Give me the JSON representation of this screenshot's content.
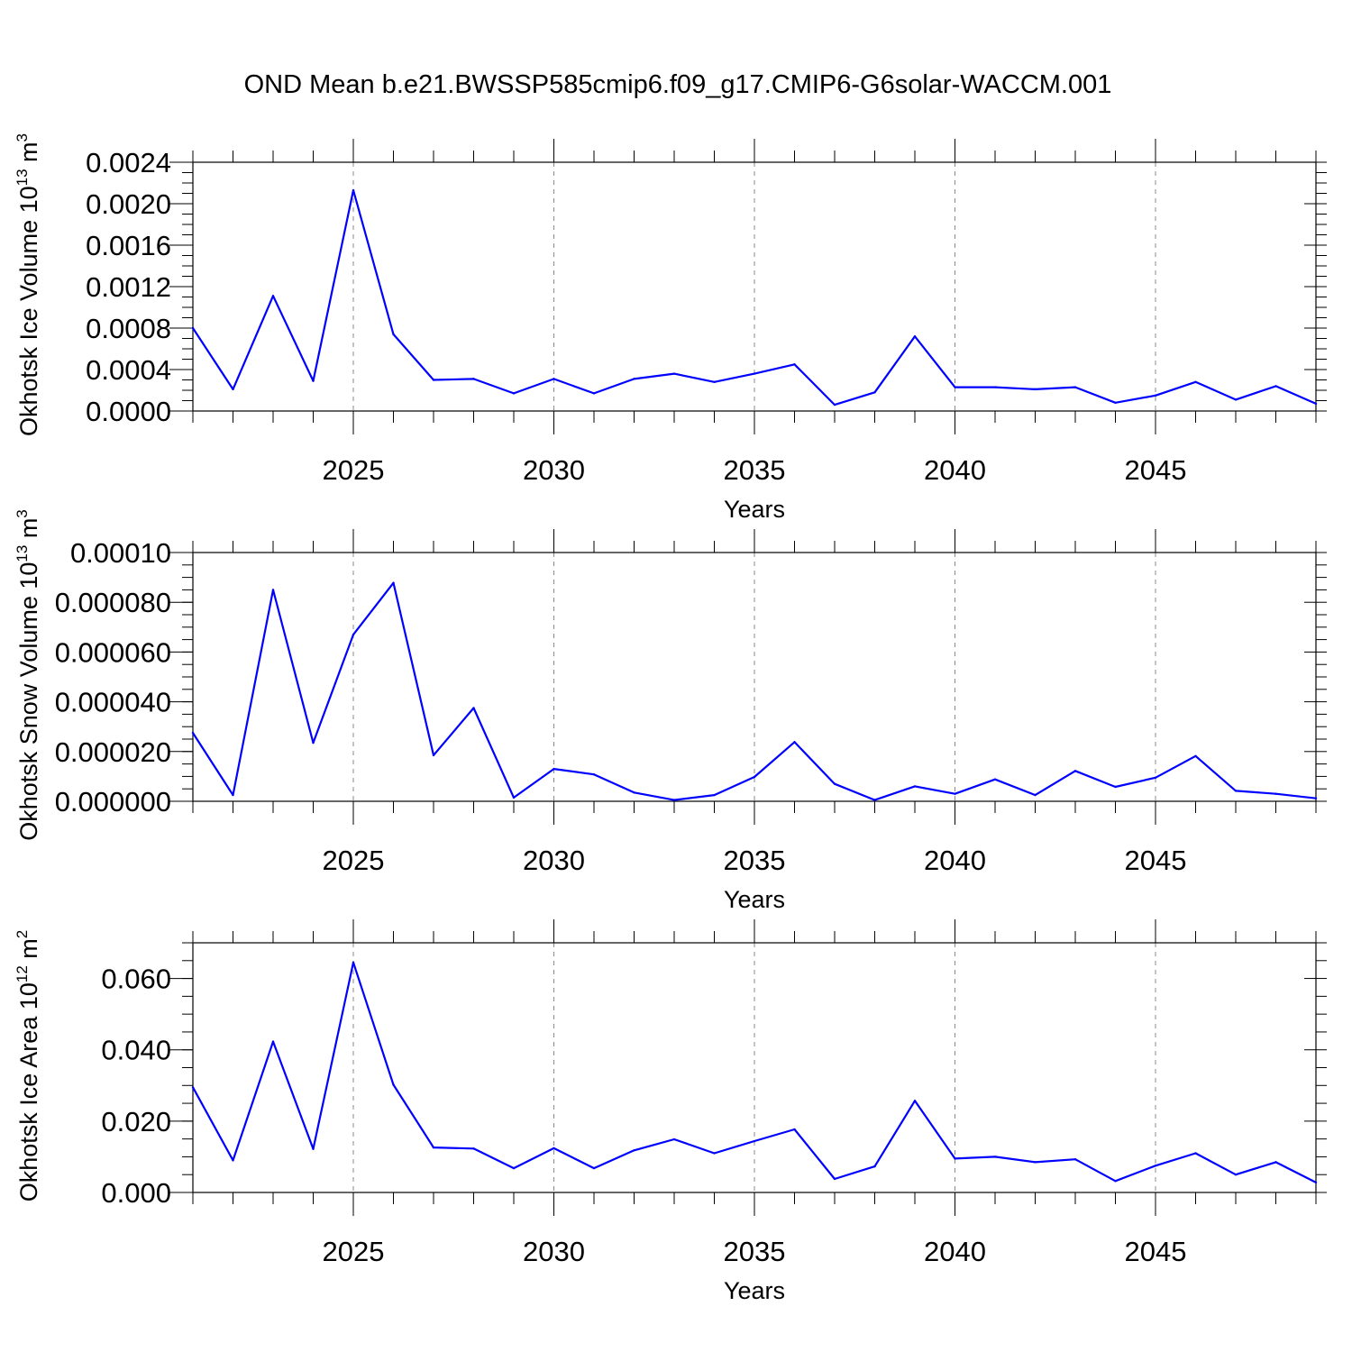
{
  "chart_data": [
    {
      "type": "line",
      "title": "OND Mean b.e21.BWSSP585cmip6.f09_g17.CMIP6-G6solar-WACCM.001",
      "ylabel": "Okhotsk Ice Volume 10",
      "ylabel_exp": "13",
      "ylabel_unit": " m",
      "ylabel_unit_exp": "3",
      "xlabel": "Years",
      "xlim": [
        2021,
        2049
      ],
      "ylim": [
        0,
        0.0024
      ],
      "xticks": [
        2025,
        2030,
        2035,
        2040,
        2045
      ],
      "xtick_labels": [
        "2025",
        "2030",
        "2035",
        "2040",
        "2045"
      ],
      "yticks": [
        0,
        0.0004,
        0.0008,
        0.0012,
        0.0016,
        0.002,
        0.0024
      ],
      "ytick_labels": [
        "0.0000",
        "0.0004",
        "0.0008",
        "0.0012",
        "0.0016",
        "0.0020",
        "0.0024"
      ],
      "grid": "vertical dashed at major x ticks",
      "line_color": "#0000ff",
      "x": [
        2021,
        2022,
        2023,
        2024,
        2025,
        2026,
        2027,
        2028,
        2029,
        2030,
        2031,
        2032,
        2033,
        2034,
        2035,
        2036,
        2037,
        2038,
        2039,
        2040,
        2041,
        2042,
        2043,
        2044,
        2045,
        2046,
        2047,
        2048,
        2049
      ],
      "values": [
        0.0008,
        0.00021,
        0.00111,
        0.00029,
        0.00213,
        0.00074,
        0.0003,
        0.00031,
        0.00017,
        0.00031,
        0.00017,
        0.00031,
        0.00036,
        0.00028,
        0.00036,
        0.00045,
        6e-05,
        0.00018,
        0.00072,
        0.00023,
        0.00023,
        0.00021,
        0.00023,
        8e-05,
        0.00015,
        0.00028,
        0.00011,
        0.00024,
        7e-05
      ]
    },
    {
      "type": "line",
      "ylabel": "Okhotsk Snow Volume 10",
      "ylabel_exp": "13",
      "ylabel_unit": " m",
      "ylabel_unit_exp": "3",
      "xlabel": "Years",
      "xlim": [
        2021,
        2049
      ],
      "ylim": [
        0,
        0.0001
      ],
      "xticks": [
        2025,
        2030,
        2035,
        2040,
        2045
      ],
      "xtick_labels": [
        "2025",
        "2030",
        "2035",
        "2040",
        "2045"
      ],
      "yticks": [
        0,
        2e-05,
        4e-05,
        6e-05,
        8e-05,
        0.0001
      ],
      "ytick_labels": [
        "0.000000",
        "0.000020",
        "0.000040",
        "0.000060",
        "0.000080",
        "0.00010"
      ],
      "grid": "vertical dashed at major x ticks",
      "line_color": "#0000ff",
      "x": [
        2021,
        2022,
        2023,
        2024,
        2025,
        2026,
        2027,
        2028,
        2029,
        2030,
        2031,
        2032,
        2033,
        2034,
        2035,
        2036,
        2037,
        2038,
        2039,
        2040,
        2041,
        2042,
        2043,
        2044,
        2045,
        2046,
        2047,
        2048,
        2049
      ],
      "values": [
        2.75e-05,
        2.5e-06,
        8.5e-05,
        2.35e-05,
        6.7e-05,
        8.78e-05,
        1.85e-05,
        3.75e-05,
        1.5e-06,
        1.3e-05,
        1.08e-05,
        3.5e-06,
        5e-07,
        2.5e-06,
        9.8e-06,
        2.38e-05,
        7e-06,
        5e-07,
        6e-06,
        3e-06,
        8.8e-06,
        2.5e-06,
        1.22e-05,
        5.8e-06,
        9.5e-06,
        1.82e-05,
        4.2e-06,
        3e-06,
        1.2e-06
      ]
    },
    {
      "type": "line",
      "ylabel": "Okhotsk Ice Area 10",
      "ylabel_exp": "12",
      "ylabel_unit": " m",
      "ylabel_unit_exp": "2",
      "xlabel": "Years",
      "xlim": [
        2021,
        2049
      ],
      "ylim": [
        0,
        0.07
      ],
      "xticks": [
        2025,
        2030,
        2035,
        2040,
        2045
      ],
      "xtick_labels": [
        "2025",
        "2030",
        "2035",
        "2040",
        "2045"
      ],
      "yticks": [
        0,
        0.02,
        0.04,
        0.06
      ],
      "ytick_labels": [
        "0.000",
        "0.020",
        "0.040",
        "0.060"
      ],
      "grid": "vertical dashed at major x ticks",
      "line_color": "#0000ff",
      "x": [
        2021,
        2022,
        2023,
        2024,
        2025,
        2026,
        2027,
        2028,
        2029,
        2030,
        2031,
        2032,
        2033,
        2034,
        2035,
        2036,
        2037,
        2038,
        2039,
        2040,
        2041,
        2042,
        2043,
        2044,
        2045,
        2046,
        2047,
        2048,
        2049
      ],
      "values": [
        0.0295,
        0.009,
        0.0423,
        0.0122,
        0.0645,
        0.0302,
        0.0126,
        0.0123,
        0.0068,
        0.0124,
        0.0068,
        0.0118,
        0.0149,
        0.011,
        0.0144,
        0.0177,
        0.0038,
        0.0073,
        0.0257,
        0.0095,
        0.01,
        0.0085,
        0.0093,
        0.0032,
        0.0075,
        0.011,
        0.005,
        0.0085,
        0.0028
      ]
    }
  ]
}
